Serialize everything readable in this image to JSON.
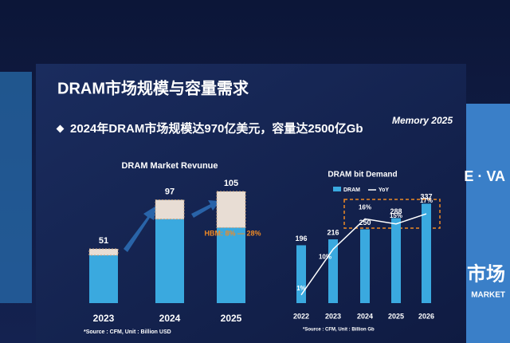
{
  "slide": {
    "title": "DRAM市场规模与容量需求",
    "subtitle": "2024年DRAM市场规模达970亿美元，容量达2500亿Gb",
    "logo": "Memory 2025",
    "side_text": "市场",
    "side_sub": "MARKET",
    "side_top": "E · VA"
  },
  "chart_data": [
    {
      "type": "bar",
      "title": "DRAM Market Revunue",
      "categories": [
        "2023",
        "2024",
        "2025"
      ],
      "values": [
        51,
        97,
        105
      ],
      "color": "#3aa9df",
      "hbm": [
        6,
        18,
        34
      ],
      "hbm_color": "#e8ddd4",
      "annotation": "HBM: 8% — 28%",
      "source": "*Source : CFM, Unit : Billion USD",
      "ylim": [
        0,
        120
      ]
    },
    {
      "type": "bar",
      "title": "DRAM bit Demand",
      "categories": [
        "2022",
        "2023",
        "2024",
        "2025",
        "2026"
      ],
      "series": [
        {
          "name": "DRAM",
          "color": "#3aa9df",
          "values": [
            196,
            216,
            250,
            288,
            337
          ]
        },
        {
          "name": "YoY",
          "color": "#ffffff",
          "axis": "y2",
          "values": [
            1,
            10,
            16,
            15,
            17
          ],
          "value_labels": [
            "1%",
            "10%",
            "16%",
            "15%",
            "17%"
          ]
        }
      ],
      "source": "*Source : CFM, Unit : Billion Gb",
      "ylim": [
        0,
        400
      ],
      "y2lim": [
        0,
        20
      ]
    }
  ]
}
